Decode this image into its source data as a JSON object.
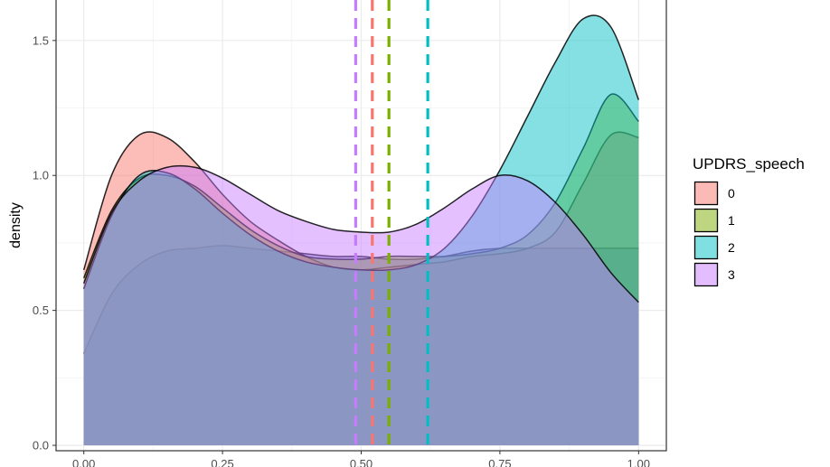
{
  "chart_data": {
    "type": "area",
    "subtype": "density",
    "title": "",
    "xlabel": "",
    "ylabel": "density",
    "xlim": [
      -0.05,
      1.05
    ],
    "ylim": [
      -0.02,
      1.65
    ],
    "x_ticks": [
      0.0,
      0.25,
      0.5,
      0.75,
      1.0
    ],
    "x_tick_labels": [
      "0.00",
      "0.25",
      "0.50",
      "0.75",
      "1.00"
    ],
    "y_ticks": [
      0.0,
      0.5,
      1.0,
      1.5
    ],
    "y_tick_labels": [
      "0.0",
      "0.5",
      "1.0",
      "1.5"
    ],
    "grid": true,
    "legend": {
      "title": "UPDRS_speech",
      "position": "right"
    },
    "series": [
      {
        "name": "0",
        "color": "#F8766D",
        "mean": 0.52,
        "x": [
          0.0,
          0.05,
          0.1,
          0.15,
          0.2,
          0.25,
          0.3,
          0.35,
          0.4,
          0.45,
          0.5,
          0.55,
          0.6,
          0.65,
          0.7,
          0.75,
          0.8,
          0.85,
          0.9,
          0.95,
          1.0
        ],
        "y": [
          0.65,
          1.0,
          1.15,
          1.14,
          1.05,
          0.93,
          0.83,
          0.76,
          0.7,
          0.66,
          0.65,
          0.66,
          0.67,
          0.68,
          0.7,
          0.71,
          0.73,
          0.79,
          0.97,
          1.15,
          1.14
        ]
      },
      {
        "name": "1",
        "color": "#7CAE00",
        "mean": 0.55,
        "x": [
          0.0,
          0.05,
          0.1,
          0.15,
          0.2,
          0.25,
          0.3,
          0.35,
          0.4,
          0.45,
          0.5,
          0.55,
          0.6,
          0.65,
          0.7,
          0.75,
          0.8,
          0.85,
          0.9,
          0.95,
          1.0
        ],
        "y": [
          0.62,
          0.87,
          0.99,
          1.0,
          0.96,
          0.88,
          0.8,
          0.74,
          0.7,
          0.69,
          0.69,
          0.7,
          0.7,
          0.7,
          0.71,
          0.73,
          0.78,
          0.9,
          1.1,
          1.3,
          1.2
        ]
      },
      {
        "name": "2",
        "color": "#00BFC4",
        "mean": 0.62,
        "x": [
          0.0,
          0.05,
          0.1,
          0.15,
          0.2,
          0.25,
          0.3,
          0.35,
          0.4,
          0.45,
          0.5,
          0.55,
          0.6,
          0.65,
          0.7,
          0.75,
          0.8,
          0.85,
          0.9,
          0.95,
          1.0
        ],
        "y": [
          0.58,
          0.85,
          1.0,
          1.01,
          0.95,
          0.86,
          0.78,
          0.72,
          0.68,
          0.66,
          0.65,
          0.65,
          0.67,
          0.73,
          0.85,
          1.02,
          1.22,
          1.42,
          1.58,
          1.55,
          1.28
        ]
      },
      {
        "name": "3",
        "color": "#C77CFF",
        "mean": 0.49,
        "x": [
          0.0,
          0.05,
          0.1,
          0.15,
          0.2,
          0.25,
          0.3,
          0.35,
          0.4,
          0.45,
          0.5,
          0.55,
          0.6,
          0.65,
          0.7,
          0.75,
          0.8,
          0.85,
          0.9,
          0.95,
          1.0
        ],
        "y": [
          0.6,
          0.86,
          0.98,
          1.03,
          1.03,
          0.99,
          0.93,
          0.87,
          0.83,
          0.8,
          0.79,
          0.79,
          0.82,
          0.88,
          0.95,
          1.0,
          0.98,
          0.9,
          0.78,
          0.64,
          0.53
        ]
      }
    ],
    "background_series": {
      "color": "#6E7FBF",
      "x": [
        0.0,
        0.05,
        0.1,
        0.15,
        0.2,
        0.25,
        0.3,
        0.35,
        0.4,
        0.45,
        0.5,
        0.55,
        0.6,
        0.65,
        0.7,
        0.75,
        0.8,
        0.85,
        0.9,
        0.95,
        1.0
      ],
      "y": [
        0.34,
        0.56,
        0.67,
        0.72,
        0.73,
        0.74,
        0.73,
        0.72,
        0.71,
        0.7,
        0.7,
        0.69,
        0.69,
        0.7,
        0.72,
        0.73,
        0.73,
        0.73,
        0.73,
        0.73,
        0.73
      ]
    }
  }
}
